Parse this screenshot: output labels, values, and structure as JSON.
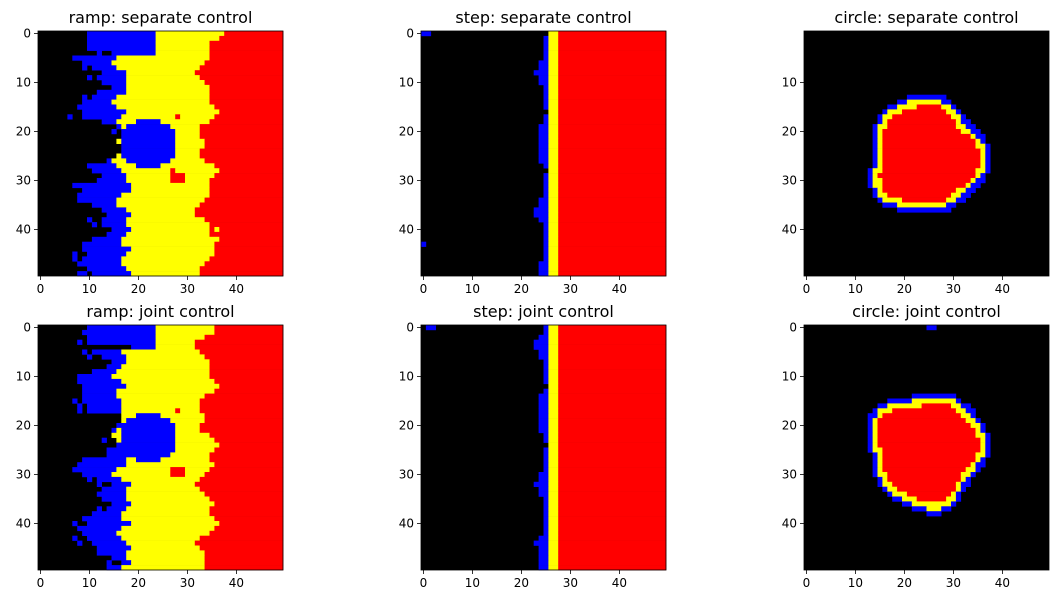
{
  "chart_data": [
    {
      "type": "heatmap",
      "title": "ramp: separate control",
      "shape": "ramp",
      "variant": "separate",
      "grid_size": 50,
      "xlim": [
        0,
        49
      ],
      "ylim": [
        49,
        0
      ],
      "x_ticks": [
        "0",
        "10",
        "20",
        "30",
        "40"
      ],
      "y_ticks": [
        "0",
        "10",
        "20",
        "30",
        "40"
      ],
      "colors": [
        "#000000",
        "#0000ff",
        "#ffff00",
        "#ff0000"
      ]
    },
    {
      "type": "heatmap",
      "title": "step: separate control",
      "shape": "step",
      "variant": "separate",
      "grid_size": 50,
      "xlim": [
        0,
        49
      ],
      "ylim": [
        49,
        0
      ],
      "x_ticks": [
        "0",
        "10",
        "20",
        "30",
        "40"
      ],
      "y_ticks": [
        "0",
        "10",
        "20",
        "30",
        "40"
      ],
      "colors": [
        "#000000",
        "#0000ff",
        "#ffff00",
        "#ff0000"
      ]
    },
    {
      "type": "heatmap",
      "title": "circle: separate control",
      "shape": "circle",
      "variant": "separate",
      "grid_size": 50,
      "xlim": [
        0,
        49
      ],
      "ylim": [
        49,
        0
      ],
      "x_ticks": [
        "0",
        "10",
        "20",
        "30",
        "40"
      ],
      "y_ticks": [
        "10",
        "20",
        "30",
        "40"
      ],
      "colors": [
        "#000000",
        "#0000ff",
        "#ffff00",
        "#ff0000"
      ]
    },
    {
      "type": "heatmap",
      "title": "ramp: joint control",
      "shape": "ramp",
      "variant": "joint",
      "grid_size": 50,
      "xlim": [
        0,
        49
      ],
      "ylim": [
        49,
        0
      ],
      "x_ticks": [
        "0",
        "10",
        "20",
        "30",
        "40"
      ],
      "y_ticks": [
        "0",
        "10",
        "20",
        "30",
        "40"
      ],
      "colors": [
        "#000000",
        "#0000ff",
        "#ffff00",
        "#ff0000"
      ]
    },
    {
      "type": "heatmap",
      "title": "step: joint control",
      "shape": "step",
      "variant": "joint",
      "grid_size": 50,
      "xlim": [
        0,
        49
      ],
      "ylim": [
        49,
        0
      ],
      "x_ticks": [
        "0",
        "10",
        "20",
        "30",
        "40"
      ],
      "y_ticks": [
        "0",
        "10",
        "20",
        "30",
        "40"
      ],
      "colors": [
        "#000000",
        "#0000ff",
        "#ffff00",
        "#ff0000"
      ]
    },
    {
      "type": "heatmap",
      "title": "circle: joint control",
      "shape": "circle",
      "variant": "joint",
      "grid_size": 50,
      "xlim": [
        0,
        49
      ],
      "ylim": [
        49,
        0
      ],
      "x_ticks": [
        "0",
        "10",
        "20",
        "30",
        "40"
      ],
      "y_ticks": [
        "0",
        "10",
        "20",
        "30",
        "40"
      ],
      "colors": [
        "#000000",
        "#0000ff",
        "#ffff00",
        "#ff0000"
      ]
    }
  ]
}
